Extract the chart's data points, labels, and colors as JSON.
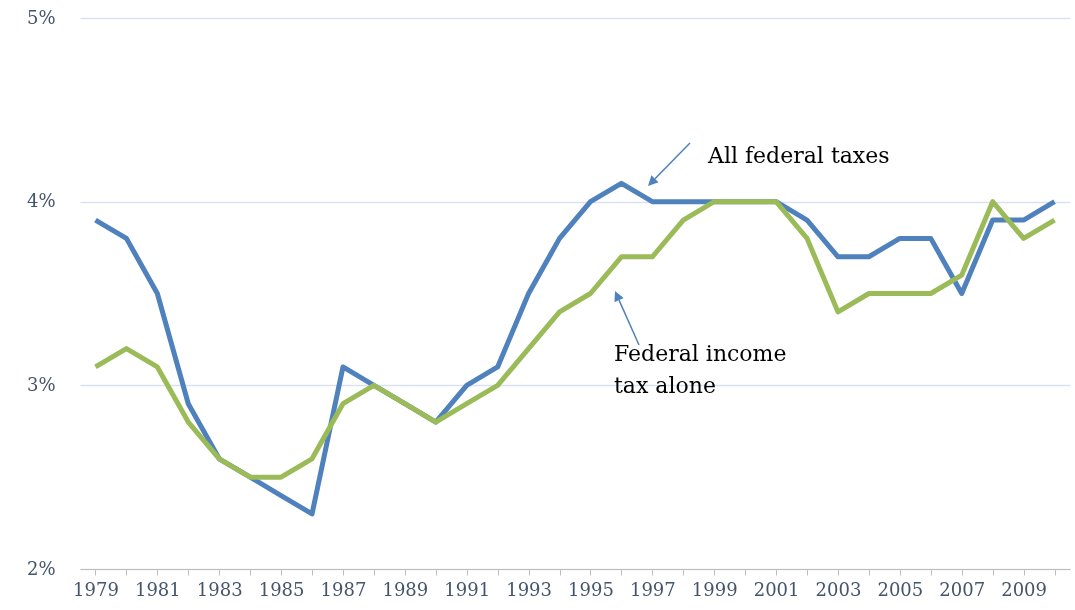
{
  "chart_data": {
    "type": "line",
    "categories": [
      "1979",
      null,
      "1981",
      null,
      "1983",
      null,
      "1985",
      null,
      "1987",
      null,
      "1989",
      null,
      "1991",
      null,
      "1993",
      null,
      "1995",
      null,
      "1997",
      null,
      "1999",
      null,
      "2001",
      null,
      "2003",
      null,
      "2005",
      null,
      "2007",
      null,
      "2009",
      null
    ],
    "series": [
      {
        "color": "#4f81bd",
        "values": [
          3.9,
          3.8,
          3.5,
          2.9,
          2.6,
          2.5,
          2.4,
          2.3,
          3.1,
          3.0,
          2.9,
          2.8,
          3.0,
          3.1,
          3.5,
          3.8,
          4.0,
          4.1,
          4.0,
          4.0,
          4.0,
          4.0,
          4.0,
          3.9,
          3.7,
          3.7,
          3.8,
          3.8,
          3.5,
          3.9,
          3.9,
          4.0
        ]
      },
      {
        "color": "#9bbb59",
        "values": [
          3.1,
          3.2,
          3.1,
          2.8,
          2.6,
          2.5,
          2.5,
          2.6,
          2.9,
          3.0,
          2.9,
          2.8,
          2.9,
          3.0,
          3.2,
          3.4,
          3.5,
          3.7,
          3.7,
          3.9,
          4.0,
          4.0,
          4.0,
          3.8,
          3.4,
          3.5,
          3.5,
          3.5,
          3.6,
          4.0,
          3.8,
          3.9
        ]
      }
    ],
    "ylim": [
      2,
      5
    ],
    "yticks": [
      {
        "value": 2,
        "label": "2%"
      },
      {
        "value": 3,
        "label": "3%"
      },
      {
        "value": 4,
        "label": "4%"
      },
      {
        "value": 5,
        "label": "5%"
      }
    ],
    "grid": "y",
    "marker": "none",
    "line_style": "solid",
    "annotations": [
      "All federal taxes",
      "Federal income tax alone"
    ]
  }
}
